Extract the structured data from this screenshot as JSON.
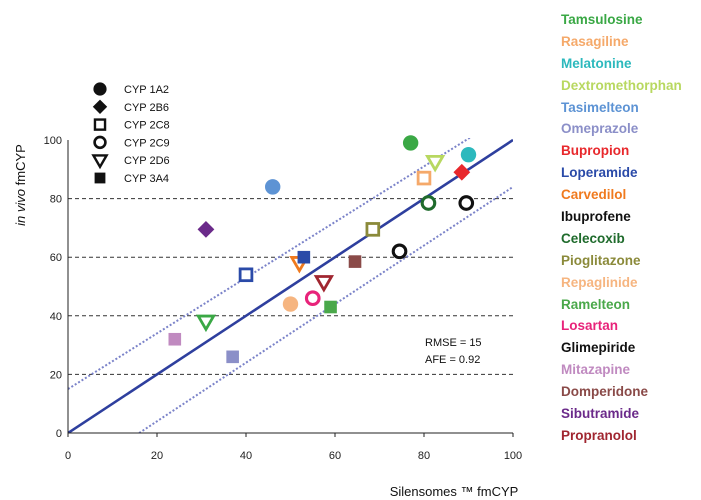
{
  "chart_data": {
    "type": "scatter",
    "xlabel": "Silensomes ™ fmCYP",
    "ylabel_italic": "in vivo",
    "ylabel_rest": " fmCYP",
    "xlim": [
      0,
      100
    ],
    "ylim": [
      0,
      100
    ],
    "xticks": [
      "0",
      "20",
      "40",
      "60",
      "80",
      "100"
    ],
    "yticks": [
      "0",
      "20",
      "40",
      "60",
      "80",
      "100"
    ],
    "grid": "horizontal dashed at 20, 40, 60, 80",
    "identity_line": {
      "from": [
        0,
        0
      ],
      "to": [
        100,
        100
      ],
      "color": "#2e3f9e"
    },
    "fold_lines": [
      {
        "from": [
          0,
          15
        ],
        "to": [
          100,
          110
        ],
        "color": "#7b83c9"
      },
      {
        "from": [
          16,
          0
        ],
        "to": [
          100,
          84
        ],
        "color": "#7b83c9"
      }
    ],
    "marker_legend": [
      {
        "label": "CYP 1A2",
        "shape": "filled-circle"
      },
      {
        "label": "CYP 2B6",
        "shape": "filled-diamond"
      },
      {
        "label": "CYP 2C8",
        "shape": "open-square"
      },
      {
        "label": "CYP 2C9",
        "shape": "open-circle"
      },
      {
        "label": "CYP 2D6",
        "shape": "open-triangle-down"
      },
      {
        "label": "CYP 3A4",
        "shape": "filled-square"
      }
    ],
    "annotations": {
      "rmse": "RMSE = 15",
      "afe": "AFE = 0.92"
    },
    "series": [
      {
        "name": "Tamsulosine",
        "color": "#3aa845",
        "shape": "filled-circle",
        "x": 77,
        "y": 99
      },
      {
        "name": "Rasagiline",
        "color": "#f5a96a",
        "shape": "open-square",
        "x": 80,
        "y": 87
      },
      {
        "name": "Melatonine",
        "color": "#2cb9bd",
        "shape": "filled-circle",
        "x": 90,
        "y": 95
      },
      {
        "name": "Dextromethorphan",
        "color": "#b8d860",
        "shape": "open-triangle-down",
        "x": 82.5,
        "y": 92.5
      },
      {
        "name": "Tasimelteon",
        "color": "#5d93d4",
        "shape": "filled-circle",
        "x": 46,
        "y": 84
      },
      {
        "name": "Omeprazole",
        "color": "#8b8fc8",
        "shape": "filled-square",
        "x": 37,
        "y": 26
      },
      {
        "name": "Bupropion",
        "color": "#e8282c",
        "shape": "filled-diamond",
        "x": 88.5,
        "y": 89
      },
      {
        "name": "Loperamide",
        "color": "#2a4aa8",
        "shape": "open-square",
        "x": 40,
        "y": 54
      },
      {
        "name": "Carvedilol",
        "color": "#f07a1e",
        "shape": "open-triangle-down",
        "x": 52,
        "y": 58
      },
      {
        "name": "Ibuprofene",
        "color": "#111111",
        "shape": "open-circle",
        "x": 89.5,
        "y": 78.5
      },
      {
        "name": "Celecoxib",
        "color": "#1f6b2c",
        "shape": "open-circle",
        "x": 81,
        "y": 78.5
      },
      {
        "name": "Pioglitazone",
        "color": "#8b8a3a",
        "shape": "open-square",
        "x": 68.5,
        "y": 69.5
      },
      {
        "name": "Repaglinide",
        "color": "#f6b580",
        "shape": "filled-circle",
        "x": 50,
        "y": 44
      },
      {
        "name": "Ramelteon",
        "color": "#4aa84a",
        "shape": "filled-square",
        "x": 59,
        "y": 43
      },
      {
        "name": "Losartan",
        "color": "#e8237a",
        "shape": "open-circle",
        "x": 55,
        "y": 46
      },
      {
        "name": "Glimepiride",
        "color": "#111111",
        "shape": "open-circle",
        "x": 74.5,
        "y": 62
      },
      {
        "name": "Mitazapine",
        "color": "#c08ac0",
        "shape": "filled-square",
        "x": 24,
        "y": 32
      },
      {
        "name": "Domperidone",
        "color": "#8a4a48",
        "shape": "filled-square",
        "x": 64.5,
        "y": 58.5
      },
      {
        "name": "Sibutramide",
        "color": "#6b2a8a",
        "shape": "filled-diamond",
        "x": 31,
        "y": 69.5
      },
      {
        "name": "Propranolol",
        "color": "#a02630",
        "shape": "open-triangle-down",
        "x": 57.5,
        "y": 51.5
      }
    ],
    "extra_points": [
      {
        "color": "#3aa845",
        "shape": "open-triangle-down",
        "x": 31,
        "y": 38
      },
      {
        "color": "#2a4aa8",
        "shape": "filled-square",
        "x": 53,
        "y": 60
      }
    ]
  }
}
